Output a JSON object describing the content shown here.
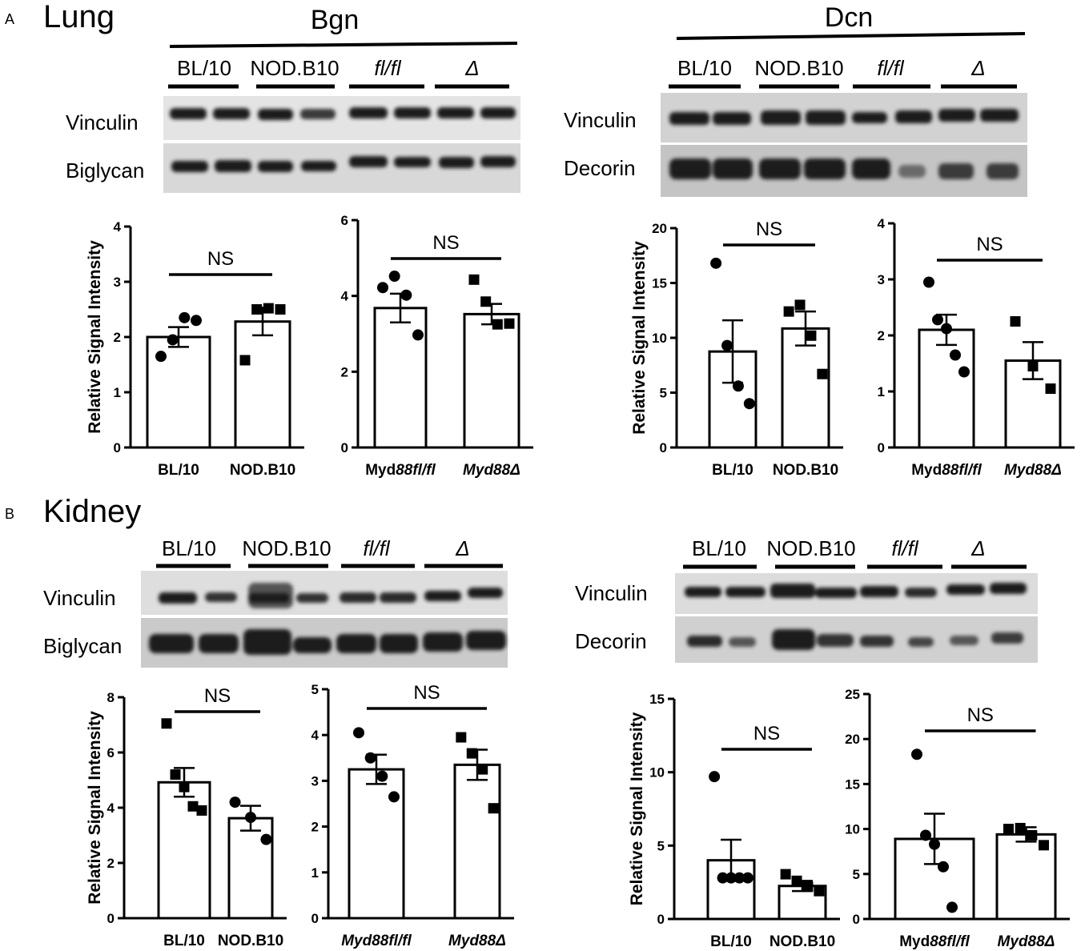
{
  "panels": [
    {
      "letter": "A",
      "title": "Lung",
      "blots": [
        {
          "title": "Bgn",
          "lanes": [
            "BL/10",
            "NOD.B10",
            "fl/fl",
            "Δ"
          ],
          "lane_italic": [
            false,
            false,
            true,
            true
          ],
          "rows": [
            "Vinculin",
            "Biglycan"
          ]
        },
        {
          "title": "Dcn",
          "lanes": [
            "BL/10",
            "NOD.B10",
            "fl/fl",
            "Δ"
          ],
          "lane_italic": [
            false,
            false,
            true,
            true
          ],
          "rows": [
            "Vinculin",
            "Decorin"
          ]
        }
      ]
    },
    {
      "letter": "B",
      "title": "Kidney",
      "blots": [
        {
          "title": "",
          "lanes": [
            "BL/10",
            "NOD.B10",
            "fl/fl",
            "Δ"
          ],
          "lane_italic": [
            false,
            false,
            true,
            true
          ],
          "rows": [
            "Vinculin",
            "Biglycan"
          ]
        },
        {
          "title": "",
          "lanes": [
            "BL/10",
            "NOD.B10",
            "fl/fl",
            "Δ"
          ],
          "lane_italic": [
            false,
            false,
            true,
            true
          ],
          "rows": [
            "Vinculin",
            "Decorin"
          ]
        }
      ]
    }
  ],
  "chart_data": [
    {
      "id": "lung-bgn-strain",
      "type": "bar",
      "ylabel": "Relative Signal Intensity",
      "ylim": [
        0,
        4
      ],
      "yticks": [
        0,
        1,
        2,
        3,
        4
      ],
      "significance": "NS",
      "categories": [
        {
          "parts": [
            {
              "t": "BL/10",
              "i": false
            }
          ]
        },
        {
          "parts": [
            {
              "t": "NOD.B10",
              "i": false
            }
          ]
        }
      ],
      "values": [
        2.0,
        2.28
      ],
      "sem": [
        0.18,
        0.25
      ],
      "markers": [
        "circle",
        "square"
      ],
      "points": [
        [
          1.65,
          1.95,
          2.35,
          2.3
        ],
        [
          1.58,
          2.5,
          2.52,
          2.5
        ]
      ]
    },
    {
      "id": "lung-bgn-myd88",
      "type": "bar",
      "ylabel": "",
      "ylim": [
        0,
        6
      ],
      "yticks": [
        0,
        2,
        4,
        6
      ],
      "significance": "NS",
      "categories": [
        {
          "parts": [
            {
              "t": "Myd",
              "i": false
            },
            {
              "t": "88fl/fl",
              "i": true
            }
          ]
        },
        {
          "parts": [
            {
              "t": "Myd88Δ",
              "i": true
            }
          ]
        }
      ],
      "values": [
        3.68,
        3.52
      ],
      "sem": [
        0.38,
        0.27
      ],
      "markers": [
        "circle",
        "square"
      ],
      "points": [
        [
          4.22,
          4.52,
          4.02,
          2.97
        ],
        [
          4.43,
          3.85,
          3.25,
          3.27
        ]
      ]
    },
    {
      "id": "lung-dcn-strain",
      "type": "bar",
      "ylabel": "Relative Signal Intensity",
      "ylim": [
        0,
        20
      ],
      "yticks": [
        0,
        5,
        10,
        15,
        20
      ],
      "significance": "NS",
      "categories": [
        {
          "parts": [
            {
              "t": "BL/10",
              "i": false
            }
          ]
        },
        {
          "parts": [
            {
              "t": "NOD.B10",
              "i": false
            }
          ]
        }
      ],
      "values": [
        8.75,
        10.85
      ],
      "sem": [
        2.85,
        1.55
      ],
      "markers": [
        "circle",
        "square"
      ],
      "points": [
        [
          16.8,
          9.3,
          5.6,
          4.0
        ],
        [
          12.4,
          13.0,
          10.2,
          6.7
        ]
      ]
    },
    {
      "id": "lung-dcn-myd88",
      "type": "bar",
      "ylabel": "",
      "ylim": [
        0,
        4
      ],
      "yticks": [
        0,
        1,
        2,
        3,
        4
      ],
      "significance": "NS",
      "categories": [
        {
          "parts": [
            {
              "t": "Myd",
              "i": false
            },
            {
              "t": "88fl/fl",
              "i": true
            }
          ]
        },
        {
          "parts": [
            {
              "t": "Myd88Δ",
              "i": true
            }
          ]
        }
      ],
      "values": [
        2.1,
        1.55
      ],
      "sem": [
        0.27,
        0.33
      ],
      "markers": [
        "circle",
        "square"
      ],
      "points": [
        [
          2.95,
          2.28,
          2.12,
          1.65,
          1.35
        ],
        [
          2.25,
          1.45,
          1.05
        ]
      ]
    },
    {
      "id": "kidney-bgn-strain",
      "type": "bar",
      "ylabel": "Relative Signal Intensity",
      "ylim": [
        0,
        8
      ],
      "yticks": [
        0,
        2,
        4,
        6,
        8
      ],
      "significance": "NS",
      "categories": [
        {
          "parts": [
            {
              "t": "BL/10",
              "i": false
            }
          ]
        },
        {
          "parts": [
            {
              "t": "NOD.B10",
              "i": false
            }
          ]
        }
      ],
      "values": [
        4.92,
        3.62
      ],
      "sem": [
        0.52,
        0.45
      ],
      "markers": [
        "square",
        "circle"
      ],
      "points": [
        [
          7.05,
          5.2,
          4.75,
          4.05,
          3.9
        ],
        [
          4.2,
          3.65,
          2.85
        ]
      ]
    },
    {
      "id": "kidney-bgn-myd88",
      "type": "bar",
      "ylabel": "",
      "ylim": [
        0,
        5
      ],
      "yticks": [
        0,
        1,
        2,
        3,
        4,
        5
      ],
      "significance": "NS",
      "categories": [
        {
          "parts": [
            {
              "t": "Myd88fl/fl",
              "i": true
            }
          ]
        },
        {
          "parts": [
            {
              "t": "Myd88Δ",
              "i": true
            }
          ]
        }
      ],
      "values": [
        3.25,
        3.35
      ],
      "sem": [
        0.32,
        0.33
      ],
      "markers": [
        "circle",
        "square"
      ],
      "points": [
        [
          4.05,
          3.5,
          3.1,
          2.65
        ],
        [
          3.95,
          3.6,
          3.25,
          2.4
        ]
      ]
    },
    {
      "id": "kidney-dcn-strain",
      "type": "bar",
      "ylabel": "Relative Signal Intensity",
      "ylim": [
        0,
        15
      ],
      "yticks": [
        0,
        5,
        10,
        15
      ],
      "significance": "NS",
      "categories": [
        {
          "parts": [
            {
              "t": "BL/10",
              "i": false
            }
          ]
        },
        {
          "parts": [
            {
              "t": "NOD.B10",
              "i": false
            }
          ]
        }
      ],
      "values": [
        4.0,
        2.25
      ],
      "sem": [
        1.4,
        0.35
      ],
      "markers": [
        "circle",
        "square"
      ],
      "points": [
        [
          9.7,
          2.8,
          2.8,
          2.8,
          2.8
        ],
        [
          3.05,
          2.6,
          2.2,
          1.9
        ]
      ]
    },
    {
      "id": "kidney-dcn-myd88",
      "type": "bar",
      "ylabel": "",
      "ylim": [
        0,
        25
      ],
      "yticks": [
        0,
        5,
        10,
        15,
        20,
        25
      ],
      "significance": "NS",
      "categories": [
        {
          "parts": [
            {
              "t": "Myd",
              "i": false
            },
            {
              "t": "88fl/fl",
              "i": true
            }
          ]
        },
        {
          "parts": [
            {
              "t": "Myd88Δ",
              "i": true
            }
          ]
        }
      ],
      "values": [
        8.9,
        9.4
      ],
      "sem": [
        2.8,
        0.8
      ],
      "markers": [
        "circle",
        "square"
      ],
      "points": [
        [
          18.3,
          9.3,
          8.3,
          5.8,
          1.3
        ],
        [
          10.0,
          10.1,
          9.3,
          8.2
        ]
      ]
    }
  ]
}
